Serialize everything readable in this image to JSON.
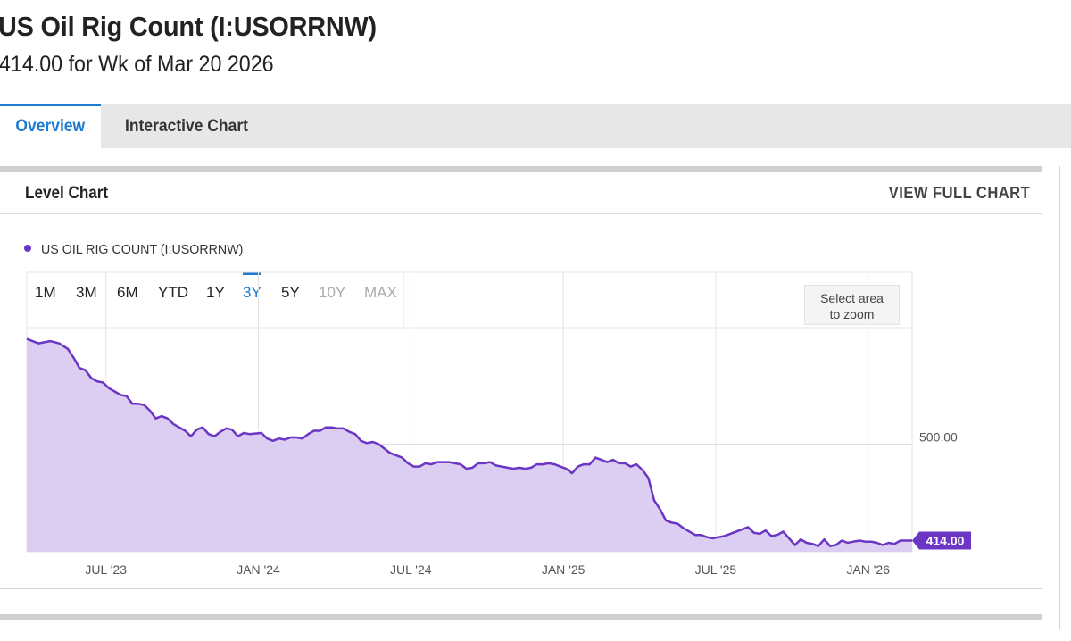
{
  "header": {
    "title": "US Oil Rig Count (I:USORRNW)",
    "subtitle": "414.00 for Wk of Mar 20 2026"
  },
  "tabs": [
    {
      "label": "Overview",
      "active": true
    },
    {
      "label": "Interactive Chart",
      "active": false
    }
  ],
  "panel": {
    "title": "Level Chart",
    "view_full_label": "VIEW FULL CHART"
  },
  "legend": {
    "label": "US OIL RIG COUNT (I:USORRNW)"
  },
  "ranges": [
    {
      "label": "1M",
      "state": "enabled"
    },
    {
      "label": "3M",
      "state": "enabled"
    },
    {
      "label": "6M",
      "state": "enabled"
    },
    {
      "label": "YTD",
      "state": "enabled"
    },
    {
      "label": "1Y",
      "state": "enabled"
    },
    {
      "label": "3Y",
      "state": "active"
    },
    {
      "label": "5Y",
      "state": "enabled"
    },
    {
      "label": "10Y",
      "state": "disabled"
    },
    {
      "label": "MAX",
      "state": "disabled"
    }
  ],
  "zoom_hint": {
    "line1": "Select area",
    "line2": "to zoom"
  },
  "colors": {
    "accent": "#1d7ad1",
    "series_line": "#6c36c4",
    "series_fill": "#dccdf2",
    "last_value_bg": "#6c36c4"
  },
  "chart_data": {
    "type": "area",
    "series": [
      {
        "name": "US OIL RIG COUNT (I:USORRNW)",
        "values": [
          [
            0,
            594
          ],
          [
            2,
            590
          ],
          [
            4,
            592
          ],
          [
            5.5,
            590
          ],
          [
            7,
            585
          ],
          [
            8,
            577
          ],
          [
            9,
            568
          ],
          [
            10,
            566
          ],
          [
            11,
            559
          ],
          [
            12,
            556
          ],
          [
            13,
            555
          ],
          [
            14,
            550
          ],
          [
            15,
            547
          ],
          [
            16,
            544
          ],
          [
            17,
            543
          ],
          [
            18,
            536
          ],
          [
            19,
            536
          ],
          [
            20,
            535
          ],
          [
            21,
            530
          ],
          [
            22,
            523
          ],
          [
            23,
            525
          ],
          [
            24,
            523
          ],
          [
            25,
            518
          ],
          [
            27,
            512
          ],
          [
            28,
            507
          ],
          [
            29,
            513
          ],
          [
            30,
            515
          ],
          [
            31,
            509
          ],
          [
            32,
            507
          ],
          [
            33,
            511
          ],
          [
            34,
            514
          ],
          [
            35,
            513
          ],
          [
            36,
            507
          ],
          [
            37,
            510
          ],
          [
            38,
            509
          ],
          [
            40,
            510
          ],
          [
            41,
            505
          ],
          [
            42,
            503
          ],
          [
            43,
            505
          ],
          [
            44,
            504
          ],
          [
            45,
            506
          ],
          [
            46,
            506
          ],
          [
            47,
            505
          ],
          [
            48,
            509
          ],
          [
            49,
            512
          ],
          [
            50,
            512
          ],
          [
            51,
            515
          ],
          [
            52,
            515
          ],
          [
            53,
            514
          ],
          [
            54,
            514
          ],
          [
            55,
            511
          ],
          [
            56,
            509
          ],
          [
            57,
            503
          ],
          [
            58,
            501
          ],
          [
            59,
            502
          ],
          [
            60,
            500
          ],
          [
            61,
            496
          ],
          [
            62,
            492
          ],
          [
            63,
            490
          ],
          [
            64,
            488
          ],
          [
            65,
            483
          ],
          [
            66,
            480
          ],
          [
            67,
            480
          ],
          [
            68,
            483
          ],
          [
            69,
            482
          ],
          [
            70,
            484
          ],
          [
            71,
            484
          ],
          [
            72,
            484
          ],
          [
            73,
            483
          ],
          [
            74,
            482
          ],
          [
            75,
            478
          ],
          [
            76,
            479
          ],
          [
            77,
            483
          ],
          [
            78,
            483
          ],
          [
            79,
            484
          ],
          [
            80,
            481
          ],
          [
            81,
            480
          ],
          [
            82,
            479
          ],
          [
            83,
            478
          ],
          [
            84,
            479
          ],
          [
            85,
            478
          ],
          [
            86,
            479
          ],
          [
            87,
            482
          ],
          [
            88,
            482
          ],
          [
            89,
            483
          ],
          [
            90,
            482
          ],
          [
            91,
            480
          ],
          [
            92,
            478
          ],
          [
            93,
            474
          ],
          [
            94,
            480
          ],
          [
            95,
            482
          ],
          [
            96,
            482
          ],
          [
            97,
            488
          ],
          [
            98,
            486
          ],
          [
            99,
            484
          ],
          [
            100,
            486
          ],
          [
            101,
            483
          ],
          [
            102,
            483
          ],
          [
            103,
            480
          ],
          [
            104,
            482
          ],
          [
            105,
            477
          ],
          [
            106,
            470
          ],
          [
            107,
            450
          ],
          [
            108,
            442
          ],
          [
            109,
            432
          ],
          [
            110,
            430
          ],
          [
            111,
            429
          ],
          [
            112,
            425
          ],
          [
            113,
            422
          ],
          [
            114,
            419
          ],
          [
            115,
            419
          ],
          [
            116,
            417
          ],
          [
            117,
            416
          ],
          [
            118,
            417
          ],
          [
            119,
            418
          ],
          [
            120,
            420
          ],
          [
            121,
            422
          ],
          [
            122,
            424
          ],
          [
            123,
            426
          ],
          [
            124,
            421
          ],
          [
            125,
            420
          ],
          [
            126,
            423
          ],
          [
            127,
            418
          ],
          [
            128,
            419
          ],
          [
            129,
            422
          ],
          [
            130,
            416
          ],
          [
            131,
            410
          ],
          [
            132,
            415
          ],
          [
            133,
            412
          ],
          [
            134,
            411
          ],
          [
            135,
            409
          ],
          [
            136,
            415
          ],
          [
            137,
            409
          ],
          [
            138,
            410
          ],
          [
            139,
            414
          ],
          [
            140,
            412
          ],
          [
            141,
            413
          ],
          [
            142,
            414
          ],
          [
            143,
            413
          ],
          [
            144,
            413
          ],
          [
            145,
            412
          ],
          [
            146,
            410
          ],
          [
            147,
            412
          ],
          [
            148,
            411
          ],
          [
            149,
            414
          ],
          [
            150,
            414
          ],
          [
            151,
            414
          ]
        ]
      }
    ],
    "x_ticks": [
      {
        "label": "JUL '23",
        "week": 13.5
      },
      {
        "label": "JAN '24",
        "week": 39.5
      },
      {
        "label": "JUL '24",
        "week": 65.5
      },
      {
        "label": "JAN '25",
        "week": 91.5
      },
      {
        "label": "JUL '25",
        "week": 117.5
      },
      {
        "label": "JAN '26",
        "week": 143.5
      }
    ],
    "y_ticks": [
      {
        "label": "500.00",
        "value": 500
      }
    ],
    "ylim": [
      404,
      604
    ],
    "xlim": [
      0,
      151
    ],
    "last_value_label": "414.00",
    "grid": true,
    "legend_position": "top-left"
  }
}
